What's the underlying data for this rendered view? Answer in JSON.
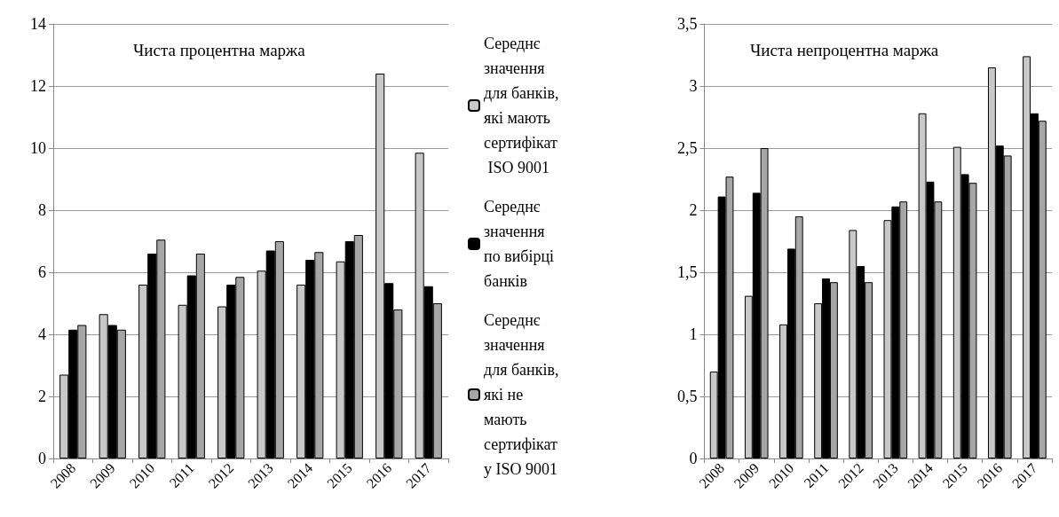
{
  "chart_data": [
    {
      "type": "bar",
      "title": "Чиста процентна маржа",
      "categories": [
        "2008",
        "2009",
        "2010",
        "2011",
        "2012",
        "2013",
        "2014",
        "2015",
        "2016",
        "2017"
      ],
      "series": [
        {
          "name": "Середнє значення для банків, які мають сертифікат ISO 9001",
          "color": "#c8c8c8",
          "values": [
            2.7,
            4.65,
            5.6,
            4.95,
            4.9,
            6.05,
            5.6,
            6.35,
            12.4,
            9.85
          ]
        },
        {
          "name": "Середнє значення по вибірці банків",
          "color": "#000000",
          "values": [
            4.15,
            4.3,
            6.6,
            5.9,
            5.6,
            6.7,
            6.4,
            7.0,
            5.65,
            5.55
          ]
        },
        {
          "name": "Середнє значення для банків, які не мають сертифікату ISO 9001",
          "color": "#a6a6a6",
          "values": [
            4.3,
            4.15,
            7.05,
            6.6,
            5.85,
            7.0,
            6.65,
            7.2,
            4.8,
            5.0
          ]
        }
      ],
      "ylim": [
        0,
        14
      ],
      "yticks": [
        0,
        2,
        4,
        6,
        8,
        10,
        12,
        14
      ],
      "grid": "y",
      "legend": "right"
    },
    {
      "type": "bar",
      "title": "Чиста непроцентна маржа",
      "categories": [
        "2008",
        "2009",
        "2010",
        "2011",
        "2012",
        "2013",
        "2014",
        "2015",
        "2016",
        "2017"
      ],
      "series": [
        {
          "color": "#c8c8c8",
          "values": [
            0.7,
            1.31,
            1.08,
            1.25,
            1.84,
            1.92,
            2.78,
            2.51,
            3.15,
            3.24
          ]
        },
        {
          "color": "#000000",
          "values": [
            2.11,
            2.14,
            1.69,
            1.45,
            1.55,
            2.03,
            2.23,
            2.29,
            2.52,
            2.78
          ]
        },
        {
          "color": "#a6a6a6",
          "values": [
            2.27,
            2.5,
            1.95,
            1.42,
            1.42,
            2.07,
            2.07,
            2.22,
            2.44,
            2.72
          ]
        }
      ],
      "ylim": [
        0,
        3.5
      ],
      "yticks": [
        0,
        {
          "value": 0.5,
          "label": "0,5"
        },
        1,
        {
          "value": 1.5,
          "label": "1,5"
        },
        2,
        {
          "value": 2.5,
          "label": "2,5"
        },
        3,
        {
          "value": 3.5,
          "label": "3,5"
        }
      ],
      "grid": "y"
    }
  ]
}
